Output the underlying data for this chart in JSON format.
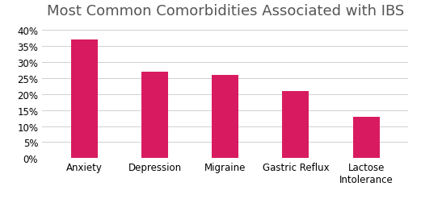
{
  "title": "Most Common Comorbidities Associated with IBS",
  "categories": [
    "Anxiety",
    "Depression",
    "Migraine",
    "Gastric Reflux",
    "Lactose\nIntolerance"
  ],
  "values": [
    37,
    27,
    26,
    21,
    13
  ],
  "bar_color": "#D81B60",
  "ylim": [
    0,
    42
  ],
  "yticks": [
    0,
    5,
    10,
    15,
    20,
    25,
    30,
    35,
    40
  ],
  "background_color": "#ffffff",
  "title_fontsize": 13,
  "tick_fontsize": 8.5,
  "bar_width": 0.38
}
